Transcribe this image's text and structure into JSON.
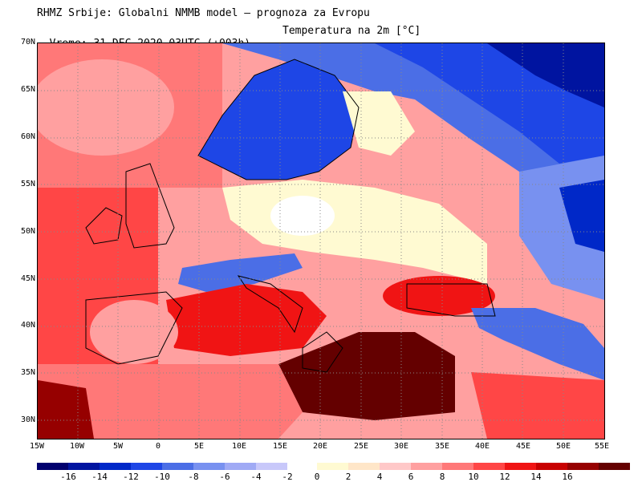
{
  "header": {
    "line1": "RHMZ Srbije: Globalni NMMB model — prognoza za Evropu",
    "line2": "Vreme: 31 DEC 2020 03UTC (+003h)",
    "parameter": "Temperatura na 2m [°C]"
  },
  "map": {
    "lat_labels": [
      "70N",
      "65N",
      "60N",
      "55N",
      "50N",
      "45N",
      "40N",
      "35N",
      "30N"
    ],
    "lon_labels": [
      "15W",
      "10W",
      "5W",
      "0",
      "5E",
      "10E",
      "15E",
      "20E",
      "25E",
      "30E",
      "35E",
      "40E",
      "45E",
      "50E",
      "55E"
    ],
    "extent": {
      "lon_min": -15,
      "lon_max": 55,
      "lat_min": 28,
      "lat_max": 70
    }
  },
  "colorbar": {
    "cold_labels": [
      "-16",
      "-14",
      "-12",
      "-10",
      "-8",
      "-6",
      "-4",
      "-2"
    ],
    "warm_labels": [
      "0",
      "2",
      "4",
      "6",
      "8",
      "10",
      "12",
      "14",
      "16"
    ],
    "cold_colors": [
      "#00006e",
      "#0014a0",
      "#0028c8",
      "#1e46e6",
      "#4b6ee6",
      "#7891f0",
      "#a0aaf5",
      "#c8c8fa"
    ],
    "warm_colors": [
      "#fffad2",
      "#ffe6c8",
      "#ffc8c8",
      "#ffa0a0",
      "#ff7878",
      "#ff4646",
      "#f01414",
      "#c80000",
      "#960000",
      "#640000"
    ]
  }
}
